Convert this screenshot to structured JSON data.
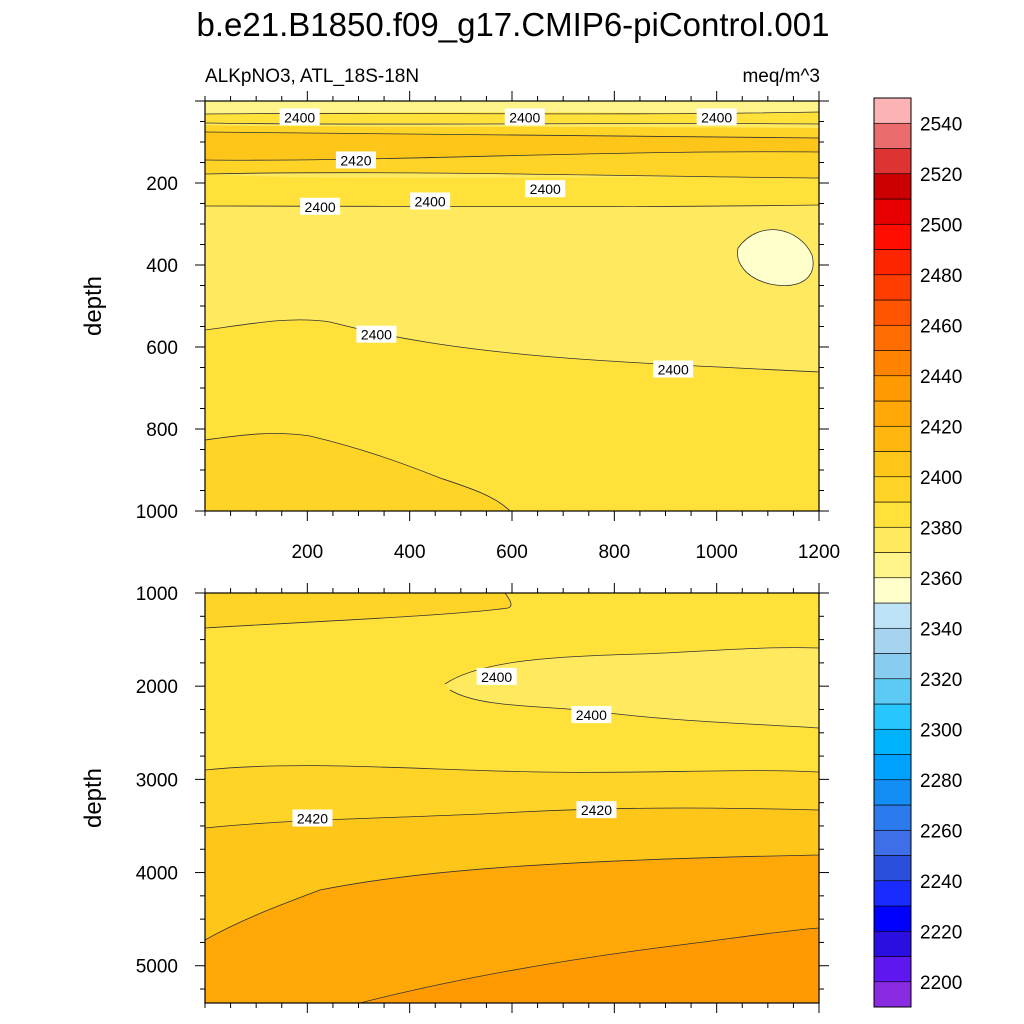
{
  "chart_data": {
    "type": "contour",
    "title": "b.e21.B1850.f09_g17.CMIP6-piControl.001",
    "variable_label": "ALKpNO3, ATL_18S-18N",
    "units": "meq/m^3",
    "colorbar": {
      "levels": [
        2200,
        2210,
        2220,
        2230,
        2240,
        2250,
        2260,
        2270,
        2280,
        2290,
        2300,
        2310,
        2320,
        2330,
        2340,
        2350,
        2360,
        2370,
        2380,
        2390,
        2400,
        2410,
        2420,
        2430,
        2440,
        2450,
        2460,
        2470,
        2480,
        2490,
        2500,
        2510,
        2520,
        2530,
        2540,
        2550
      ],
      "tick_labels": [
        "2200",
        "2220",
        "2240",
        "2260",
        "2280",
        "2300",
        "2320",
        "2340",
        "2360",
        "2380",
        "2400",
        "2420",
        "2440",
        "2460",
        "2480",
        "2500",
        "2520",
        "2540"
      ],
      "colors": [
        "#8a2be2",
        "#5f17ef",
        "#2b0fe0",
        "#0000ff",
        "#1a2bff",
        "#2b4fdd",
        "#3e6fe8",
        "#2b7bee",
        "#138ef5",
        "#00a2ff",
        "#00b3ff",
        "#27c6ff",
        "#5ccaf5",
        "#88ccf0",
        "#a6d3ef",
        "#bfe3f6",
        "#ffffcc",
        "#fff48a",
        "#ffea5f",
        "#ffe13a",
        "#ffd426",
        "#ffc61a",
        "#ffb60f",
        "#ffa808",
        "#ff9a03",
        "#ff8200",
        "#ff6c00",
        "#ff5500",
        "#ff3d00",
        "#ff2400",
        "#ff0d00",
        "#e60000",
        "#cc0000",
        "#dd3333",
        "#ea6c6c",
        "#fbb3b6"
      ]
    },
    "panels": [
      {
        "name": "upper",
        "xlim": [
          0,
          1200
        ],
        "ylim": [
          1000,
          0
        ],
        "x_ticks": [
          "200",
          "400",
          "600",
          "800",
          "1000",
          "1200"
        ],
        "y_ticks": [
          "200",
          "400",
          "600",
          "800",
          "1000"
        ],
        "ylabel": "depth",
        "contour_labels": [
          {
            "text": "2400",
            "x": 185,
            "y": 40
          },
          {
            "text": "2400",
            "x": 625,
            "y": 40
          },
          {
            "text": "2400",
            "x": 1000,
            "y": 40
          },
          {
            "text": "2420",
            "x": 295,
            "y": 145
          },
          {
            "text": "2400",
            "x": 225,
            "y": 258
          },
          {
            "text": "2400",
            "x": 440,
            "y": 245
          },
          {
            "text": "2400",
            "x": 665,
            "y": 215
          },
          {
            "text": "2400",
            "x": 335,
            "y": 570
          },
          {
            "text": "2400",
            "x": 915,
            "y": 655
          }
        ]
      },
      {
        "name": "lower",
        "xlim": [
          0,
          1200
        ],
        "ylim": [
          5400,
          1000
        ],
        "x_ticks": [],
        "y_ticks": [
          "1000",
          "2000",
          "3000",
          "4000",
          "5000"
        ],
        "ylabel": "depth",
        "contour_labels": [
          {
            "text": "2400",
            "x": 570,
            "y": 1900
          },
          {
            "text": "2400",
            "x": 755,
            "y": 2310
          },
          {
            "text": "2420",
            "x": 210,
            "y": 3420
          },
          {
            "text": "2420",
            "x": 765,
            "y": 3330
          }
        ]
      }
    ]
  }
}
